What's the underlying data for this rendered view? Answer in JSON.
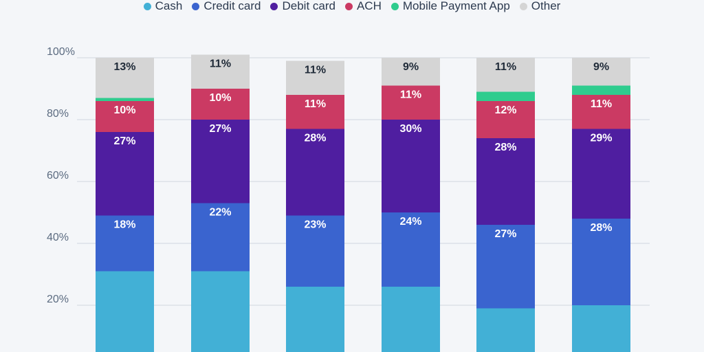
{
  "colors": {
    "background": "#f4f6f9",
    "grid": "#cfd6df",
    "label_dark": "#1f2a38",
    "label_light": "#ffffff"
  },
  "chart_data": {
    "type": "bar",
    "stacked": true,
    "categories": [
      "",
      "",
      "",
      "",
      "",
      ""
    ],
    "ylim": [
      0,
      100
    ],
    "yticks": [
      20,
      40,
      60,
      80,
      100
    ],
    "ytick_labels": [
      "20%",
      "40%",
      "60%",
      "80%",
      "100%"
    ],
    "grid": true,
    "legend_position": "top-center",
    "series": [
      {
        "name": "Cash",
        "color": "#42b0d6",
        "values": [
          31,
          31,
          26,
          26,
          19,
          20
        ],
        "labels": [
          "",
          "",
          "",
          "",
          "",
          ""
        ]
      },
      {
        "name": "Credit card",
        "color": "#3a64cf",
        "values": [
          18,
          22,
          23,
          24,
          27,
          28
        ],
        "labels": [
          "18%",
          "22%",
          "23%",
          "24%",
          "27%",
          "28%"
        ]
      },
      {
        "name": "Debit card",
        "color": "#4f1ea0",
        "values": [
          27,
          27,
          28,
          30,
          28,
          29
        ],
        "labels": [
          "27%",
          "27%",
          "28%",
          "30%",
          "28%",
          "29%"
        ]
      },
      {
        "name": "ACH",
        "color": "#cb3a63",
        "values": [
          10,
          10,
          11,
          11,
          12,
          11
        ],
        "labels": [
          "10%",
          "10%",
          "11%",
          "11%",
          "12%",
          "11%"
        ]
      },
      {
        "name": "Mobile Payment App",
        "color": "#2fcc8e",
        "values": [
          1,
          0,
          0,
          0,
          3,
          3
        ],
        "labels": [
          "",
          "",
          "",
          "",
          "",
          ""
        ]
      },
      {
        "name": "Other",
        "color": "#d5d5d5",
        "values": [
          13,
          11,
          11,
          9,
          11,
          9
        ],
        "labels": [
          "13%",
          "11%",
          "11%",
          "9%",
          "11%",
          "9%"
        ]
      }
    ]
  }
}
